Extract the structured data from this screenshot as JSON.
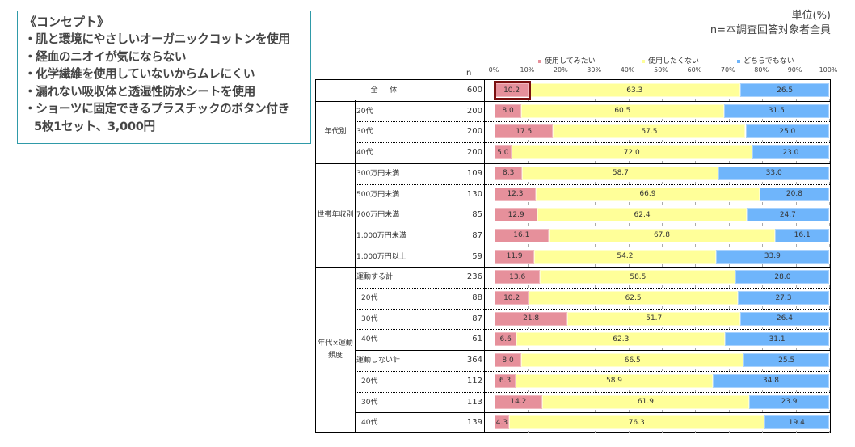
{
  "concept": {
    "title": "《コンセプト》",
    "items": [
      "・肌と環境にやさしいオーガニックコットンを使用",
      "・経血のニオイが気にならない",
      "・化学繊維を使用していないからムレにくい",
      "・漏れない吸収体と透湿性防水シートを使用",
      "・ショーツに固定できるプラスチックのボタン付き",
      "5枚1セット、3,000円"
    ]
  },
  "unit_note": {
    "line1": "単位(%)",
    "line2": "n=本調査回答対象者全員"
  },
  "chart_data": {
    "type": "bar",
    "orientation": "horizontal",
    "stacked": true,
    "title": "",
    "xlabel": "",
    "ylabel": "",
    "xlim": [
      0,
      100
    ],
    "x_ticks": [
      "0%",
      "10%",
      "20%",
      "30%",
      "40%",
      "50%",
      "60%",
      "70%",
      "80%",
      "90%",
      "100%"
    ],
    "n_header": "n",
    "legend_position": "top",
    "series": [
      {
        "name": "使用してみたい",
        "color": "#e6909b"
      },
      {
        "name": "使用したくない",
        "color": "#ffff99"
      },
      {
        "name": "どちらでもない",
        "color": "#6fb5fb"
      }
    ],
    "groups": [
      {
        "label": "",
        "rows": 1
      },
      {
        "label": "年代別",
        "rows": 3
      },
      {
        "label": "世帯年収別",
        "rows": 5
      },
      {
        "label": "年代×運動頻度",
        "rows": 8
      }
    ],
    "rows": [
      {
        "label": "全 体",
        "n": 600,
        "values": [
          10.2,
          63.3,
          26.5
        ],
        "highlight": true
      },
      {
        "label": "20代",
        "n": 200,
        "values": [
          8.0,
          60.5,
          31.5
        ]
      },
      {
        "label": "30代",
        "n": 200,
        "values": [
          17.5,
          57.5,
          25.0
        ]
      },
      {
        "label": "40代",
        "n": 200,
        "values": [
          5.0,
          72.0,
          23.0
        ]
      },
      {
        "label": "300万円未満",
        "n": 109,
        "values": [
          8.3,
          58.7,
          33.0
        ]
      },
      {
        "label": "500万円未満",
        "n": 130,
        "values": [
          12.3,
          66.9,
          20.8
        ]
      },
      {
        "label": "700万円未満",
        "n": 85,
        "values": [
          12.9,
          62.4,
          24.7
        ]
      },
      {
        "label": "1,000万円未満",
        "n": 87,
        "values": [
          16.1,
          67.8,
          16.1
        ]
      },
      {
        "label": "1,000万円以上",
        "n": 59,
        "values": [
          11.9,
          54.2,
          33.9
        ]
      },
      {
        "label": "運動する計",
        "n": 236,
        "values": [
          13.6,
          58.5,
          28.0
        ]
      },
      {
        "label": "20代",
        "n": 88,
        "values": [
          10.2,
          62.5,
          27.3
        ]
      },
      {
        "label": "30代",
        "n": 87,
        "values": [
          21.8,
          51.7,
          26.4
        ]
      },
      {
        "label": "40代",
        "n": 61,
        "values": [
          6.6,
          62.3,
          31.1
        ]
      },
      {
        "label": "運動しない計",
        "n": 364,
        "values": [
          8.0,
          66.5,
          25.5
        ]
      },
      {
        "label": "20代",
        "n": 112,
        "values": [
          6.3,
          58.9,
          34.8
        ]
      },
      {
        "label": "30代",
        "n": 113,
        "values": [
          14.2,
          61.9,
          23.9
        ]
      },
      {
        "label": "40代",
        "n": 139,
        "values": [
          4.3,
          76.3,
          19.4
        ]
      }
    ]
  }
}
